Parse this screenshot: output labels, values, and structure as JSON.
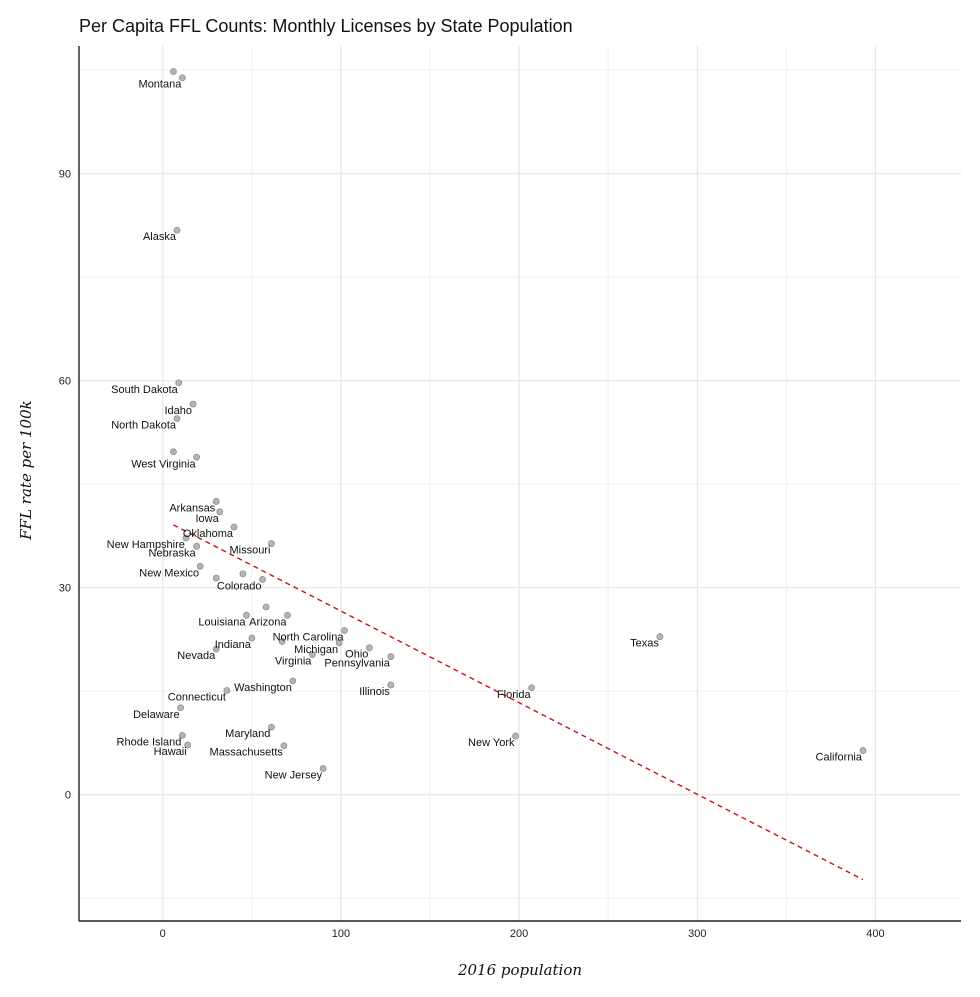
{
  "chart_data": {
    "type": "scatter",
    "title": "Per Capita FFL Counts: Monthly Licenses by State Population",
    "xlabel": "2016 population",
    "ylabel": "FFL rate per 100k",
    "xlim": [
      -47,
      448
    ],
    "ylim": [
      -18.3,
      108.5
    ],
    "x_ticks": [
      0,
      100,
      200,
      300,
      400
    ],
    "y_ticks": [
      0,
      30,
      60,
      90
    ],
    "grid": true,
    "points": [
      {
        "x": 6,
        "y": 104.8,
        "label": ""
      },
      {
        "x": 11,
        "y": 103.9,
        "label": "Montana"
      },
      {
        "x": 8,
        "y": 81.8,
        "label": "Alaska"
      },
      {
        "x": 9,
        "y": 59.7,
        "label": "South Dakota"
      },
      {
        "x": 17,
        "y": 56.6,
        "label": "Idaho"
      },
      {
        "x": 8,
        "y": 54.5,
        "label": "North Dakota"
      },
      {
        "x": 6,
        "y": 49.7,
        "label": ""
      },
      {
        "x": 19,
        "y": 48.9,
        "label": "West Virginia"
      },
      {
        "x": 30,
        "y": 42.5,
        "label": "Arkansas"
      },
      {
        "x": 32,
        "y": 41.0,
        "label": "Iowa"
      },
      {
        "x": 40,
        "y": 38.8,
        "label": "Oklahoma"
      },
      {
        "x": 13,
        "y": 37.2,
        "label": "New Hampshire"
      },
      {
        "x": 19,
        "y": 36.0,
        "label": "Nebraska"
      },
      {
        "x": 61,
        "y": 36.4,
        "label": "Missouri"
      },
      {
        "x": 21,
        "y": 33.1,
        "label": "New Mexico"
      },
      {
        "x": 30,
        "y": 31.4,
        "label": ""
      },
      {
        "x": 45,
        "y": 32.0,
        "label": ""
      },
      {
        "x": 56,
        "y": 31.2,
        "label": "Colorado"
      },
      {
        "x": 58,
        "y": 27.2,
        "label": ""
      },
      {
        "x": 47,
        "y": 26.0,
        "label": "Louisiana"
      },
      {
        "x": 70,
        "y": 26.0,
        "label": "Arizona"
      },
      {
        "x": 102,
        "y": 23.8,
        "label": "North Carolina"
      },
      {
        "x": 50,
        "y": 22.7,
        "label": "Indiana"
      },
      {
        "x": 67,
        "y": 22.2,
        "label": ""
      },
      {
        "x": 99,
        "y": 22.0,
        "label": "Michigan"
      },
      {
        "x": 116,
        "y": 21.3,
        "label": "Ohio"
      },
      {
        "x": 30,
        "y": 21.1,
        "label": "Nevada"
      },
      {
        "x": 84,
        "y": 20.3,
        "label": "Virginia"
      },
      {
        "x": 128,
        "y": 20.0,
        "label": "Pennsylvania"
      },
      {
        "x": 279,
        "y": 22.9,
        "label": "Texas"
      },
      {
        "x": 73,
        "y": 16.5,
        "label": "Washington"
      },
      {
        "x": 128,
        "y": 15.9,
        "label": "Illinois"
      },
      {
        "x": 207,
        "y": 15.5,
        "label": "Florida"
      },
      {
        "x": 36,
        "y": 15.1,
        "label": "Connecticut"
      },
      {
        "x": 10,
        "y": 12.6,
        "label": "Delaware"
      },
      {
        "x": 61,
        "y": 9.8,
        "label": "Maryland"
      },
      {
        "x": 11,
        "y": 8.6,
        "label": "Rhode Island"
      },
      {
        "x": 198,
        "y": 8.5,
        "label": "New York"
      },
      {
        "x": 14,
        "y": 7.2,
        "label": "Hawaii"
      },
      {
        "x": 68,
        "y": 7.1,
        "label": "Massachusetts"
      },
      {
        "x": 393,
        "y": 6.4,
        "label": "California"
      },
      {
        "x": 90,
        "y": 3.8,
        "label": "New Jersey"
      }
    ],
    "trend_line": {
      "color": "#cc1111",
      "style": "dashed",
      "x": [
        6,
        393
      ],
      "y": [
        39.1,
        -12.3
      ]
    }
  }
}
